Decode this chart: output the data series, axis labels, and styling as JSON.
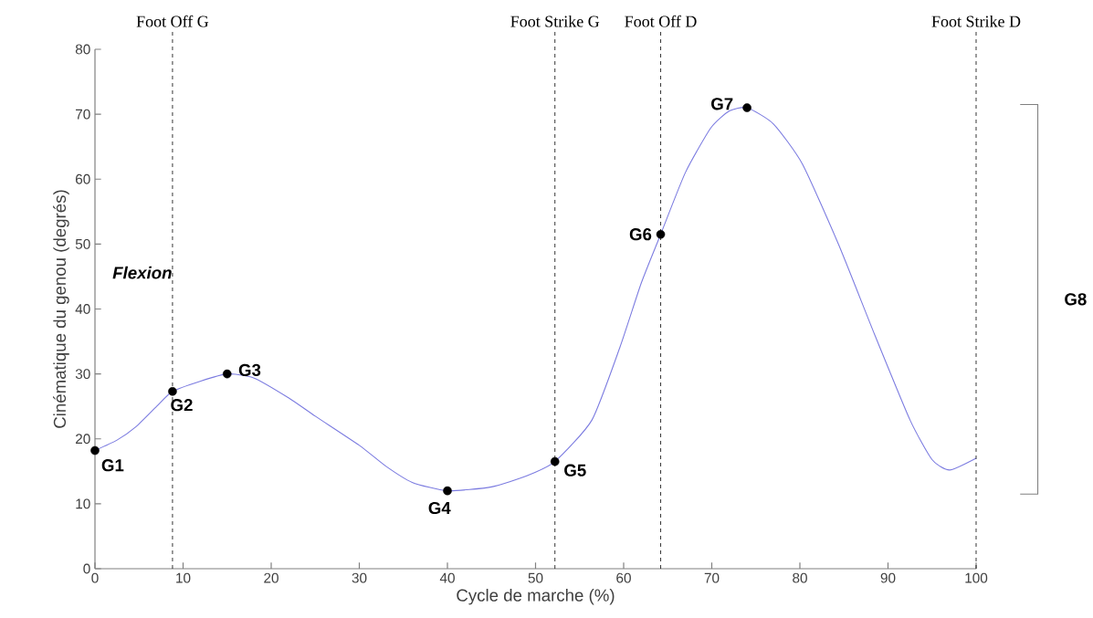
{
  "chart_data": {
    "type": "line",
    "xlabel": "Cycle de marche (%)",
    "ylabel": "Cinématique du genou (degrés)",
    "xlim": [
      0,
      100
    ],
    "ylim": [
      0,
      80
    ],
    "xticks": [
      0,
      10,
      20,
      30,
      40,
      50,
      60,
      70,
      80,
      90,
      100
    ],
    "yticks": [
      0,
      10,
      20,
      30,
      40,
      50,
      60,
      70,
      80
    ],
    "grid": false,
    "series": [
      {
        "color": "#7b7be0",
        "marker": "none",
        "x": [
          0,
          2.5,
          4.6,
          7,
          8.8,
          12,
          15,
          18,
          22,
          25,
          30,
          33,
          36,
          40,
          45,
          49,
          52.2,
          56.4,
          59.6,
          62,
          64.2,
          67,
          69.9,
          72,
          74,
          77,
          80.3,
          84.4,
          88.5,
          92.5,
          95,
          97,
          100
        ],
        "values": [
          18.2,
          19.8,
          21.8,
          25,
          27.3,
          28.9,
          30,
          29.4,
          26.3,
          23.5,
          19,
          15.8,
          13.3,
          12,
          12.6,
          14.3,
          16.5,
          22.9,
          34.2,
          44,
          51.5,
          61,
          67.9,
          70.5,
          71,
          68.5,
          62.3,
          49.9,
          36,
          22.9,
          16.8,
          15.2,
          17
        ]
      },
      {
        "type": "scatter",
        "color": "#000000",
        "x": [
          0,
          8.8,
          15,
          40,
          52.2,
          64.2,
          74
        ],
        "values": [
          18.2,
          27.3,
          30,
          12,
          16.5,
          51.5,
          71
        ]
      }
    ],
    "ref_lines": [
      {
        "axis": "x",
        "value": 8.8,
        "label": "Foot Off G",
        "line_style": "dashed"
      },
      {
        "axis": "x",
        "value": 52.2,
        "label": "Foot Strike G",
        "line_style": "dashed"
      },
      {
        "axis": "x",
        "value": 64.2,
        "label": "Foot Off D",
        "line_style": "dashed"
      },
      {
        "axis": "x",
        "value": 100,
        "label": "Foot Strike D",
        "line_style": "dashed"
      }
    ],
    "annotations": [
      "Flexion",
      {
        "text": "G1",
        "x": 0,
        "y": 18.2
      },
      {
        "text": "G2",
        "x": 8.8,
        "y": 27.3
      },
      {
        "text": "G3",
        "x": 15,
        "y": 30
      },
      {
        "text": "G4",
        "x": 40,
        "y": 12
      },
      {
        "text": "G5",
        "x": 52.2,
        "y": 16.5
      },
      {
        "text": "G6",
        "x": 64.2,
        "y": 51.5
      },
      {
        "text": "G7",
        "x": 74,
        "y": 71
      },
      "G8"
    ]
  }
}
